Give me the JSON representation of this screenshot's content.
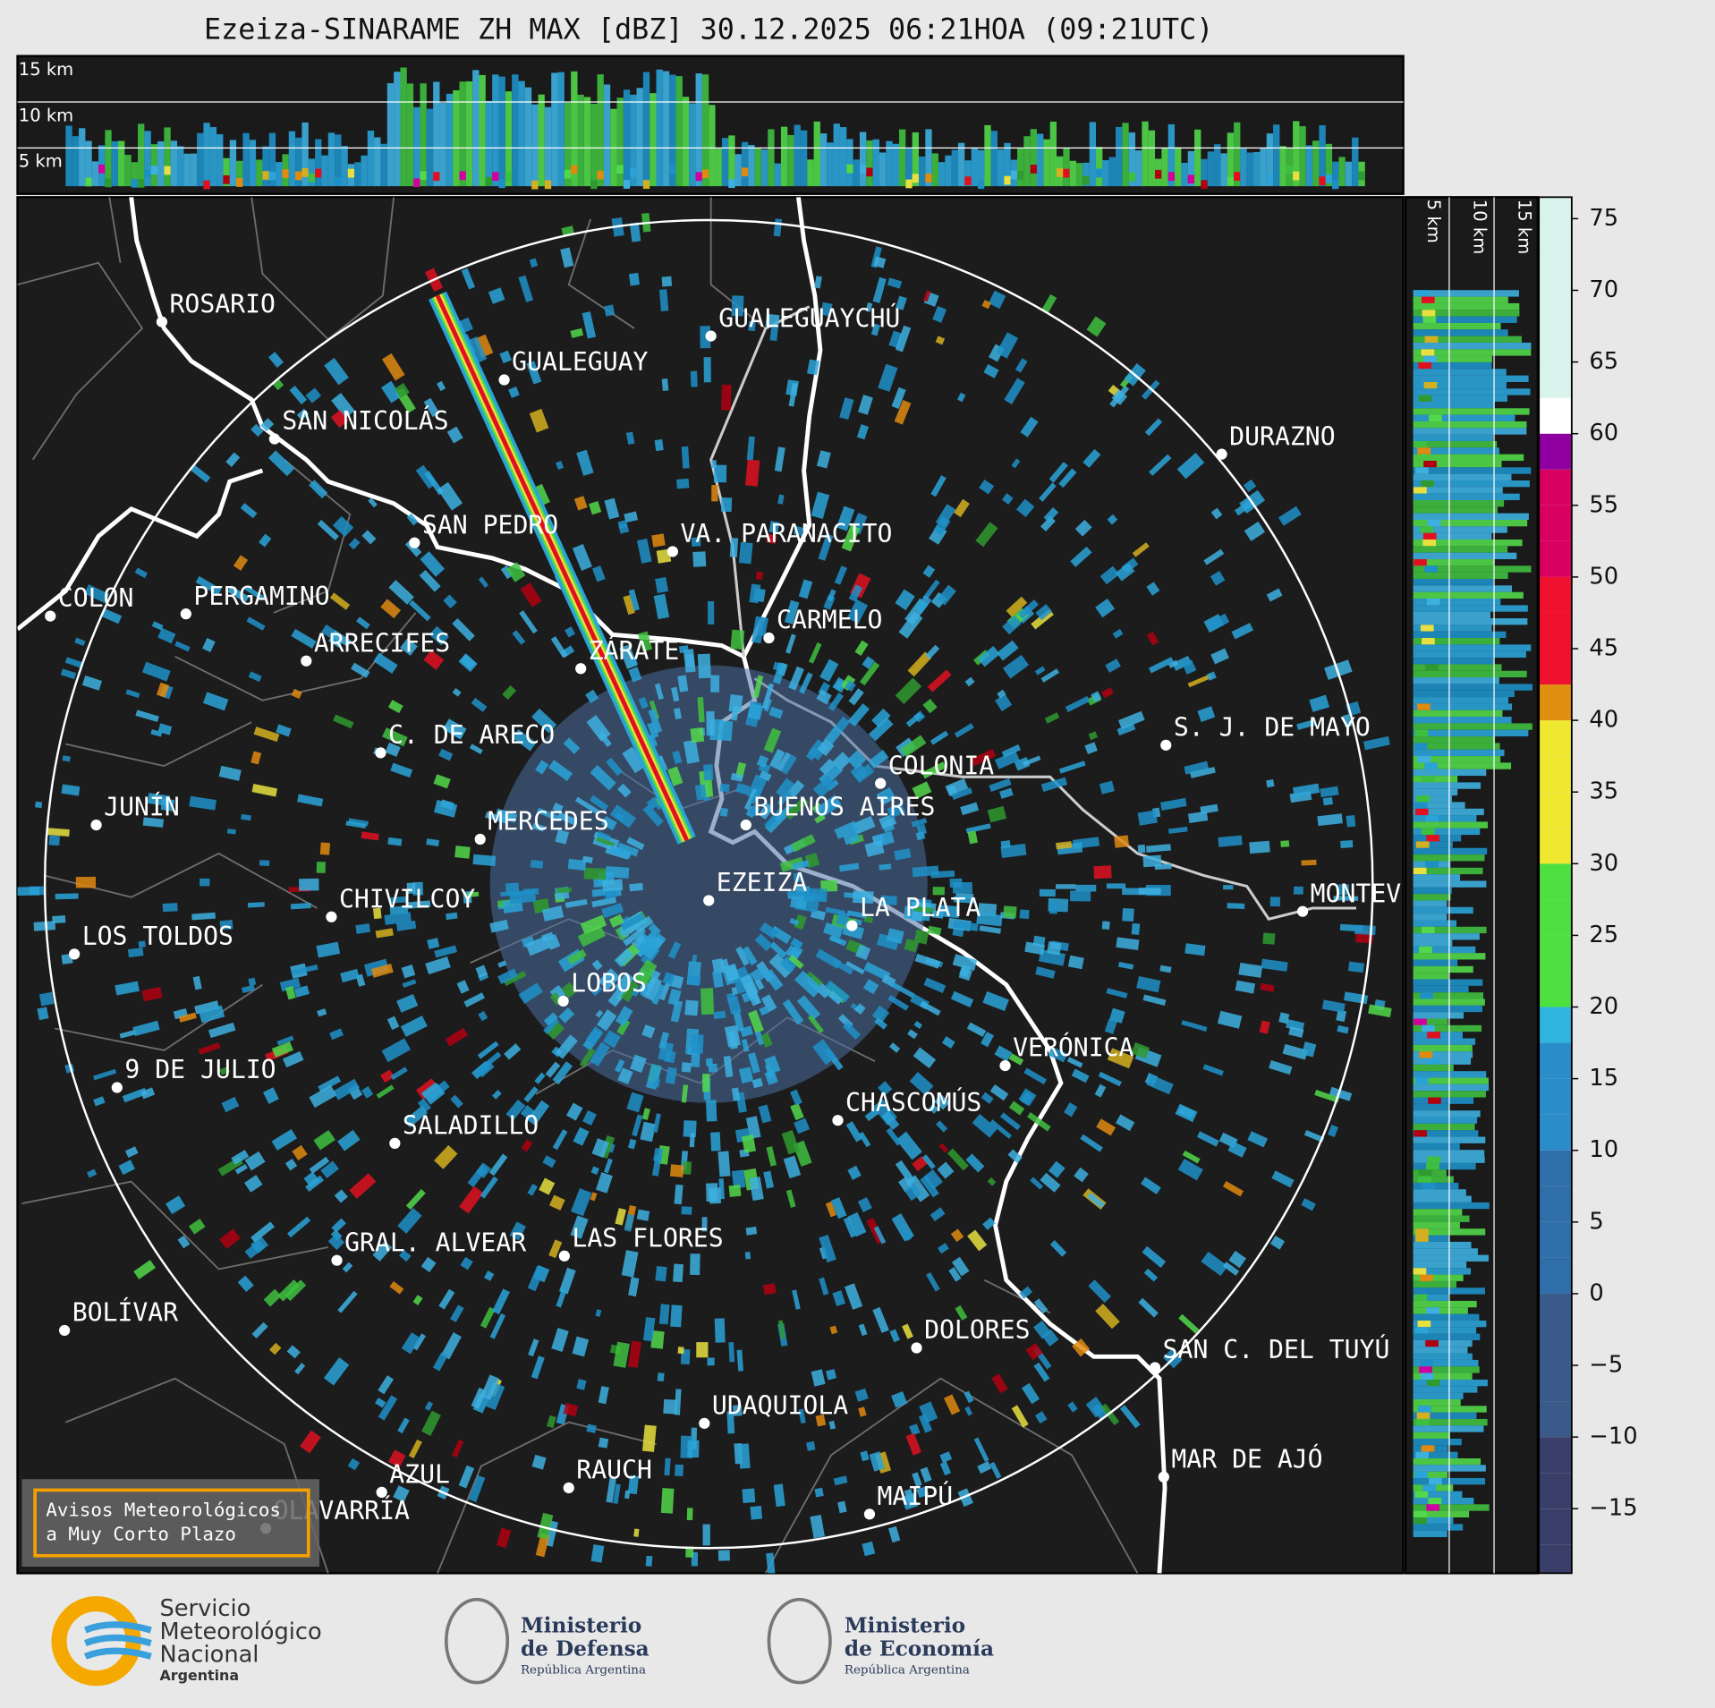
{
  "header": {
    "title": "Ezeiza-SINARAME ZH MAX [dBZ] 30.12.2025 06:21HOA (09:21UTC)"
  },
  "top_panel": {
    "height_labels": [
      "15 km",
      "10 km",
      "5 km"
    ]
  },
  "side_panel": {
    "height_labels": [
      "5 km",
      "10 km",
      "15 km"
    ]
  },
  "colorbar": {
    "clim": [
      -19.5,
      76.5
    ],
    "ticks": [
      {
        "value": -15,
        "label": "−15"
      },
      {
        "value": -10,
        "label": "−10"
      },
      {
        "value": -5,
        "label": "−5"
      },
      0,
      5,
      10,
      15,
      20,
      25,
      30,
      35,
      40,
      45,
      50,
      55,
      60,
      65,
      70,
      75
    ]
  },
  "cities": [
    "ROSARIO",
    "GUALEGUAYCHÚ",
    "GUALEGUAY",
    "SAN NICOLÁS",
    "DURAZNO",
    "SAN PEDRO",
    "VA. PARANACITO",
    "COLON",
    "PERGAMINO",
    "CARMELO",
    "ARRECIFES",
    "ZÁRATE",
    "S. J. DE MAYO",
    "C. DE ARECO",
    "COLONIA",
    "BUENOS AIRES",
    "JUNÍN",
    "MERCEDES",
    "EZEIZA",
    "MONTEVIDEO",
    "CHIVILCOY",
    "LA PLATA",
    "LOS TOLDOS",
    "LOBOS",
    "VERÓNICA",
    "9 DE JULIO",
    "CHASCOMÚS",
    "SALADILLO",
    "GRAL. ALVEAR",
    "LAS FLORES",
    "BOLÍVAR",
    "DOLORES",
    "SAN C. DEL TUYÚ",
    "UDAQUIOLA",
    "MAR DE AJÓ",
    "RAUCH",
    "AZUL",
    "OLAVARRÍA",
    "MAIPÚ"
  ],
  "warning": [
    "Avisos Meteorológicos",
    "a Muy Corto Plazo"
  ],
  "footer": {
    "smn": [
      "Servicio",
      "Meteorológico",
      "Nacional",
      "Argentina"
    ],
    "defensa": [
      "Ministerio",
      "de Defensa",
      "República Argentina"
    ],
    "economia": [
      "Ministerio",
      "de Economía",
      "República Argentina"
    ]
  }
}
